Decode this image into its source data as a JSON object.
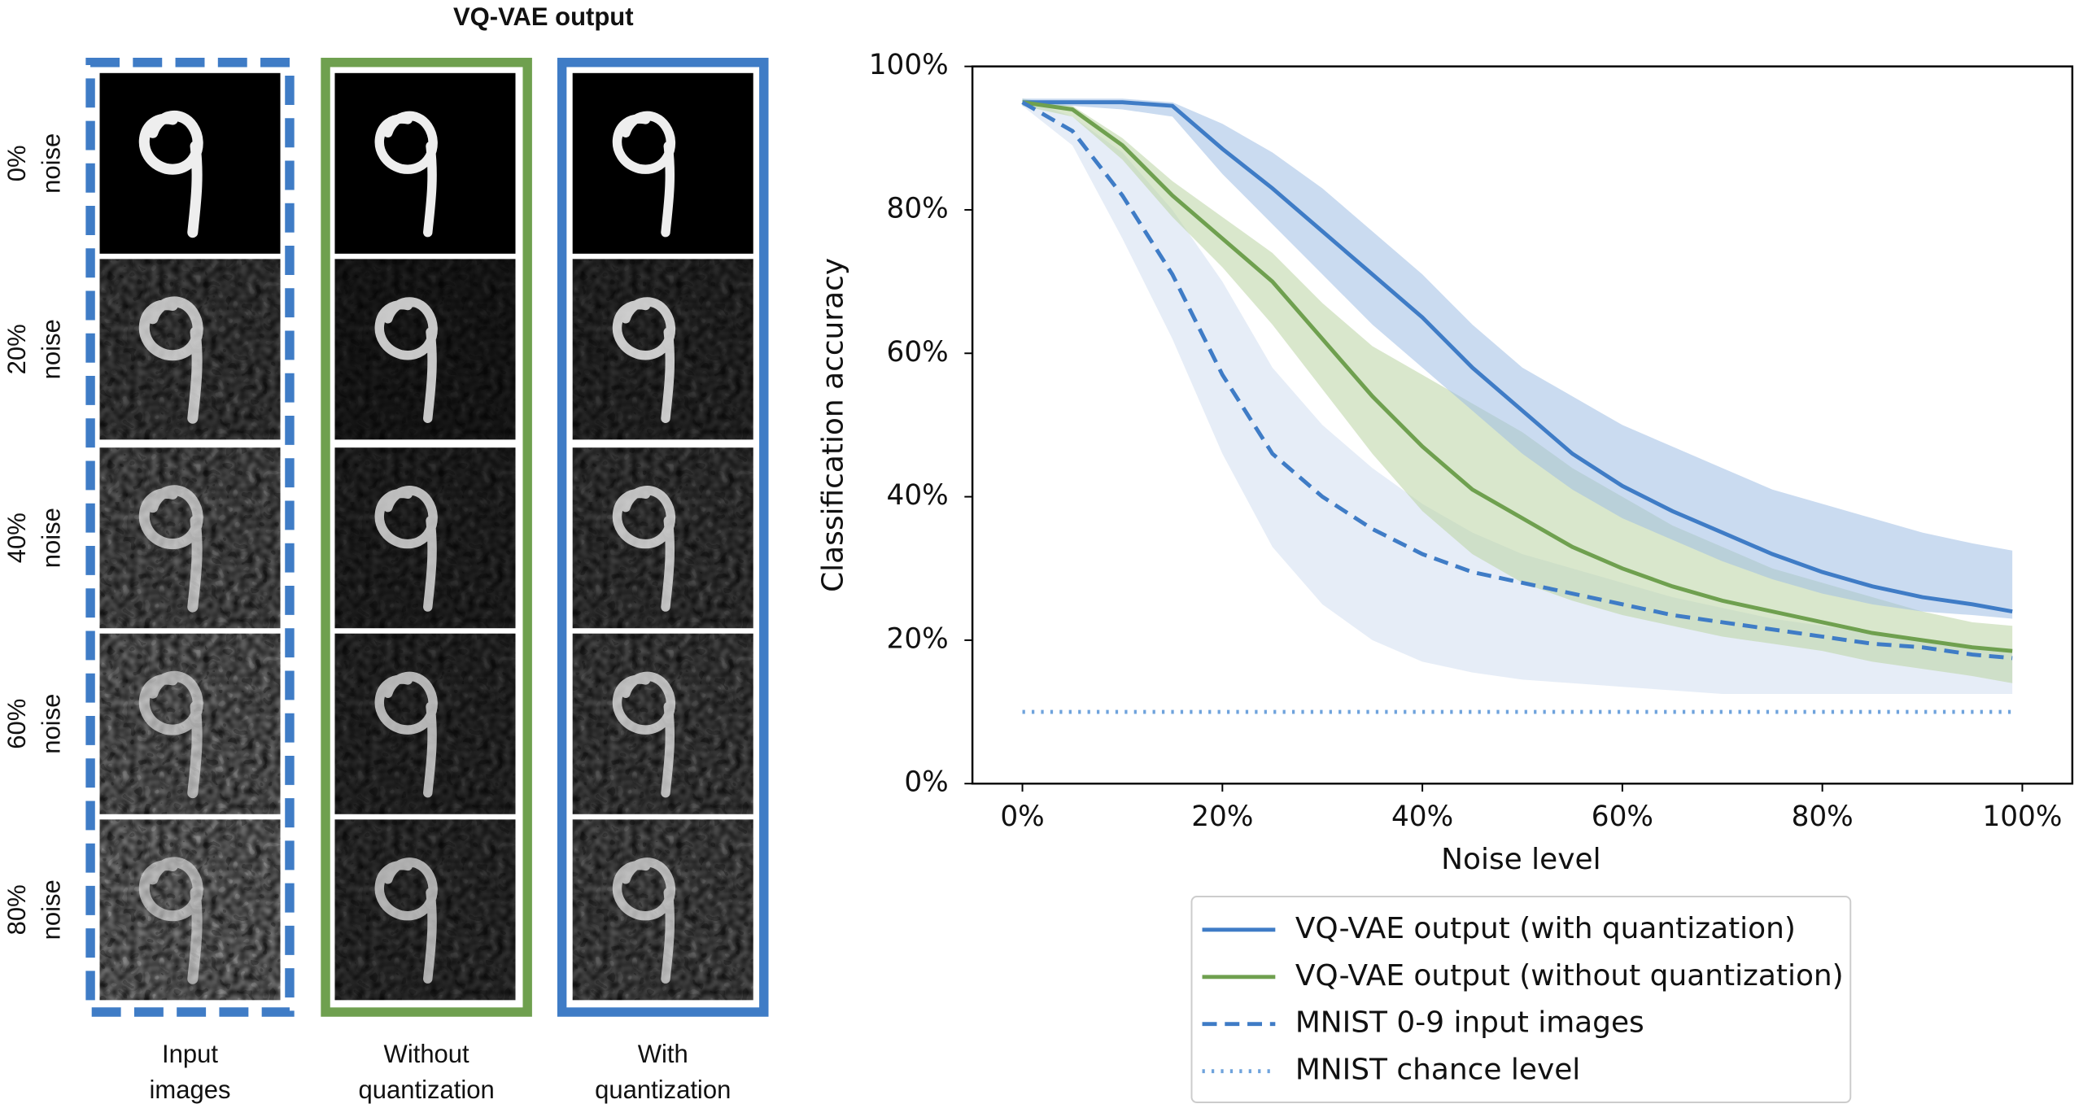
{
  "panel": {
    "title": "VQ-VAE output",
    "rows": [
      {
        "level": "0%",
        "label": "noise"
      },
      {
        "level": "20%",
        "label": "noise"
      },
      {
        "level": "40%",
        "label": "noise"
      },
      {
        "level": "60%",
        "label": "noise"
      },
      {
        "level": "80%",
        "label": "noise"
      }
    ],
    "columns": [
      [
        "Input",
        "images"
      ],
      [
        "Without",
        "quantization"
      ],
      [
        "With",
        "quantization"
      ]
    ]
  },
  "chart_data": {
    "type": "line",
    "xlabel": "Noise level",
    "ylabel": "Classification accuracy",
    "x": [
      0,
      5,
      10,
      15,
      20,
      25,
      30,
      35,
      40,
      45,
      50,
      55,
      60,
      65,
      70,
      75,
      80,
      85,
      90,
      95,
      99
    ],
    "xlim": [
      -5,
      105
    ],
    "ylim": [
      0,
      100
    ],
    "xticks": [
      {
        "value": 0,
        "label": "0%"
      },
      {
        "value": 20,
        "label": "20%"
      },
      {
        "value": 40,
        "label": "40%"
      },
      {
        "value": 60,
        "label": "60%"
      },
      {
        "value": 80,
        "label": "80%"
      },
      {
        "value": 100,
        "label": "100%"
      }
    ],
    "yticks": [
      {
        "value": 0,
        "label": "0%"
      },
      {
        "value": 20,
        "label": "20%"
      },
      {
        "value": 40,
        "label": "40%"
      },
      {
        "value": 60,
        "label": "60%"
      },
      {
        "value": 80,
        "label": "80%"
      },
      {
        "value": 100,
        "label": "100%"
      }
    ],
    "legend": "below",
    "series": [
      {
        "name": "VQ-VAE output (with quantization)",
        "color": "#3f7cc6",
        "style": "solid",
        "band_color": "#9fbde4",
        "values": [
          95,
          95,
          95,
          94.5,
          88.5,
          83,
          77,
          71,
          65,
          58,
          52,
          46,
          41.5,
          38,
          35,
          32,
          29.5,
          27.5,
          26,
          25,
          24
        ],
        "band_upper": [
          95.5,
          95.5,
          95.5,
          95,
          92,
          88,
          83,
          77,
          71,
          64,
          58,
          54,
          50,
          47,
          44,
          41,
          39,
          37,
          35,
          33.5,
          32.5
        ],
        "band_lower": [
          94.5,
          94.5,
          94,
          93,
          85,
          78,
          71,
          64,
          58,
          52,
          46,
          41,
          37,
          34,
          31,
          28.5,
          26.5,
          25,
          24,
          23.5,
          23
        ]
      },
      {
        "name": "VQ-VAE output (without quantization)",
        "color": "#6fa04f",
        "style": "solid",
        "band_color": "#b9d3a2",
        "values": [
          95,
          94,
          89,
          82,
          76,
          70,
          62,
          54,
          47,
          41,
          37,
          33,
          30,
          27.5,
          25.5,
          24,
          22.5,
          21,
          20,
          19,
          18.5
        ],
        "band_upper": [
          95.5,
          94.5,
          90,
          84,
          79,
          74,
          67,
          61,
          57,
          53,
          49,
          44,
          40,
          36,
          33,
          30,
          28,
          26,
          24,
          22.5,
          22
        ],
        "band_lower": [
          94.5,
          93,
          87,
          79,
          72,
          64,
          55,
          46,
          38,
          32,
          28,
          25.5,
          23.5,
          22,
          20.5,
          19.5,
          18.5,
          17,
          16,
          15,
          14
        ]
      },
      {
        "name": "MNIST 0-9 input images",
        "color": "#3f7cc6",
        "style": "dashed",
        "band_color": "#dbe6f4",
        "values": [
          95,
          91,
          82,
          71,
          57,
          46,
          40,
          35.5,
          32,
          29.5,
          28,
          26.5,
          25,
          23.5,
          22.5,
          21.5,
          20.5,
          19.5,
          19,
          18,
          17.5
        ],
        "band_upper": [
          95.5,
          93,
          88,
          80,
          70,
          58,
          50,
          44,
          39,
          35,
          32,
          30,
          28,
          26,
          24.5,
          23,
          22,
          21,
          20,
          19,
          18.5
        ],
        "band_lower": [
          94.5,
          89,
          76,
          62,
          46,
          33,
          25,
          20,
          17,
          15.5,
          14.5,
          14,
          13.5,
          13,
          12.5,
          12.5,
          12.5,
          12.5,
          12.5,
          12.5,
          12.5
        ]
      },
      {
        "name": "MNIST chance level",
        "color": "#6fa3dc",
        "style": "dotted",
        "values": [
          10,
          10,
          10,
          10,
          10,
          10,
          10,
          10,
          10,
          10,
          10,
          10,
          10,
          10,
          10,
          10,
          10,
          10,
          10,
          10,
          10
        ]
      }
    ]
  }
}
